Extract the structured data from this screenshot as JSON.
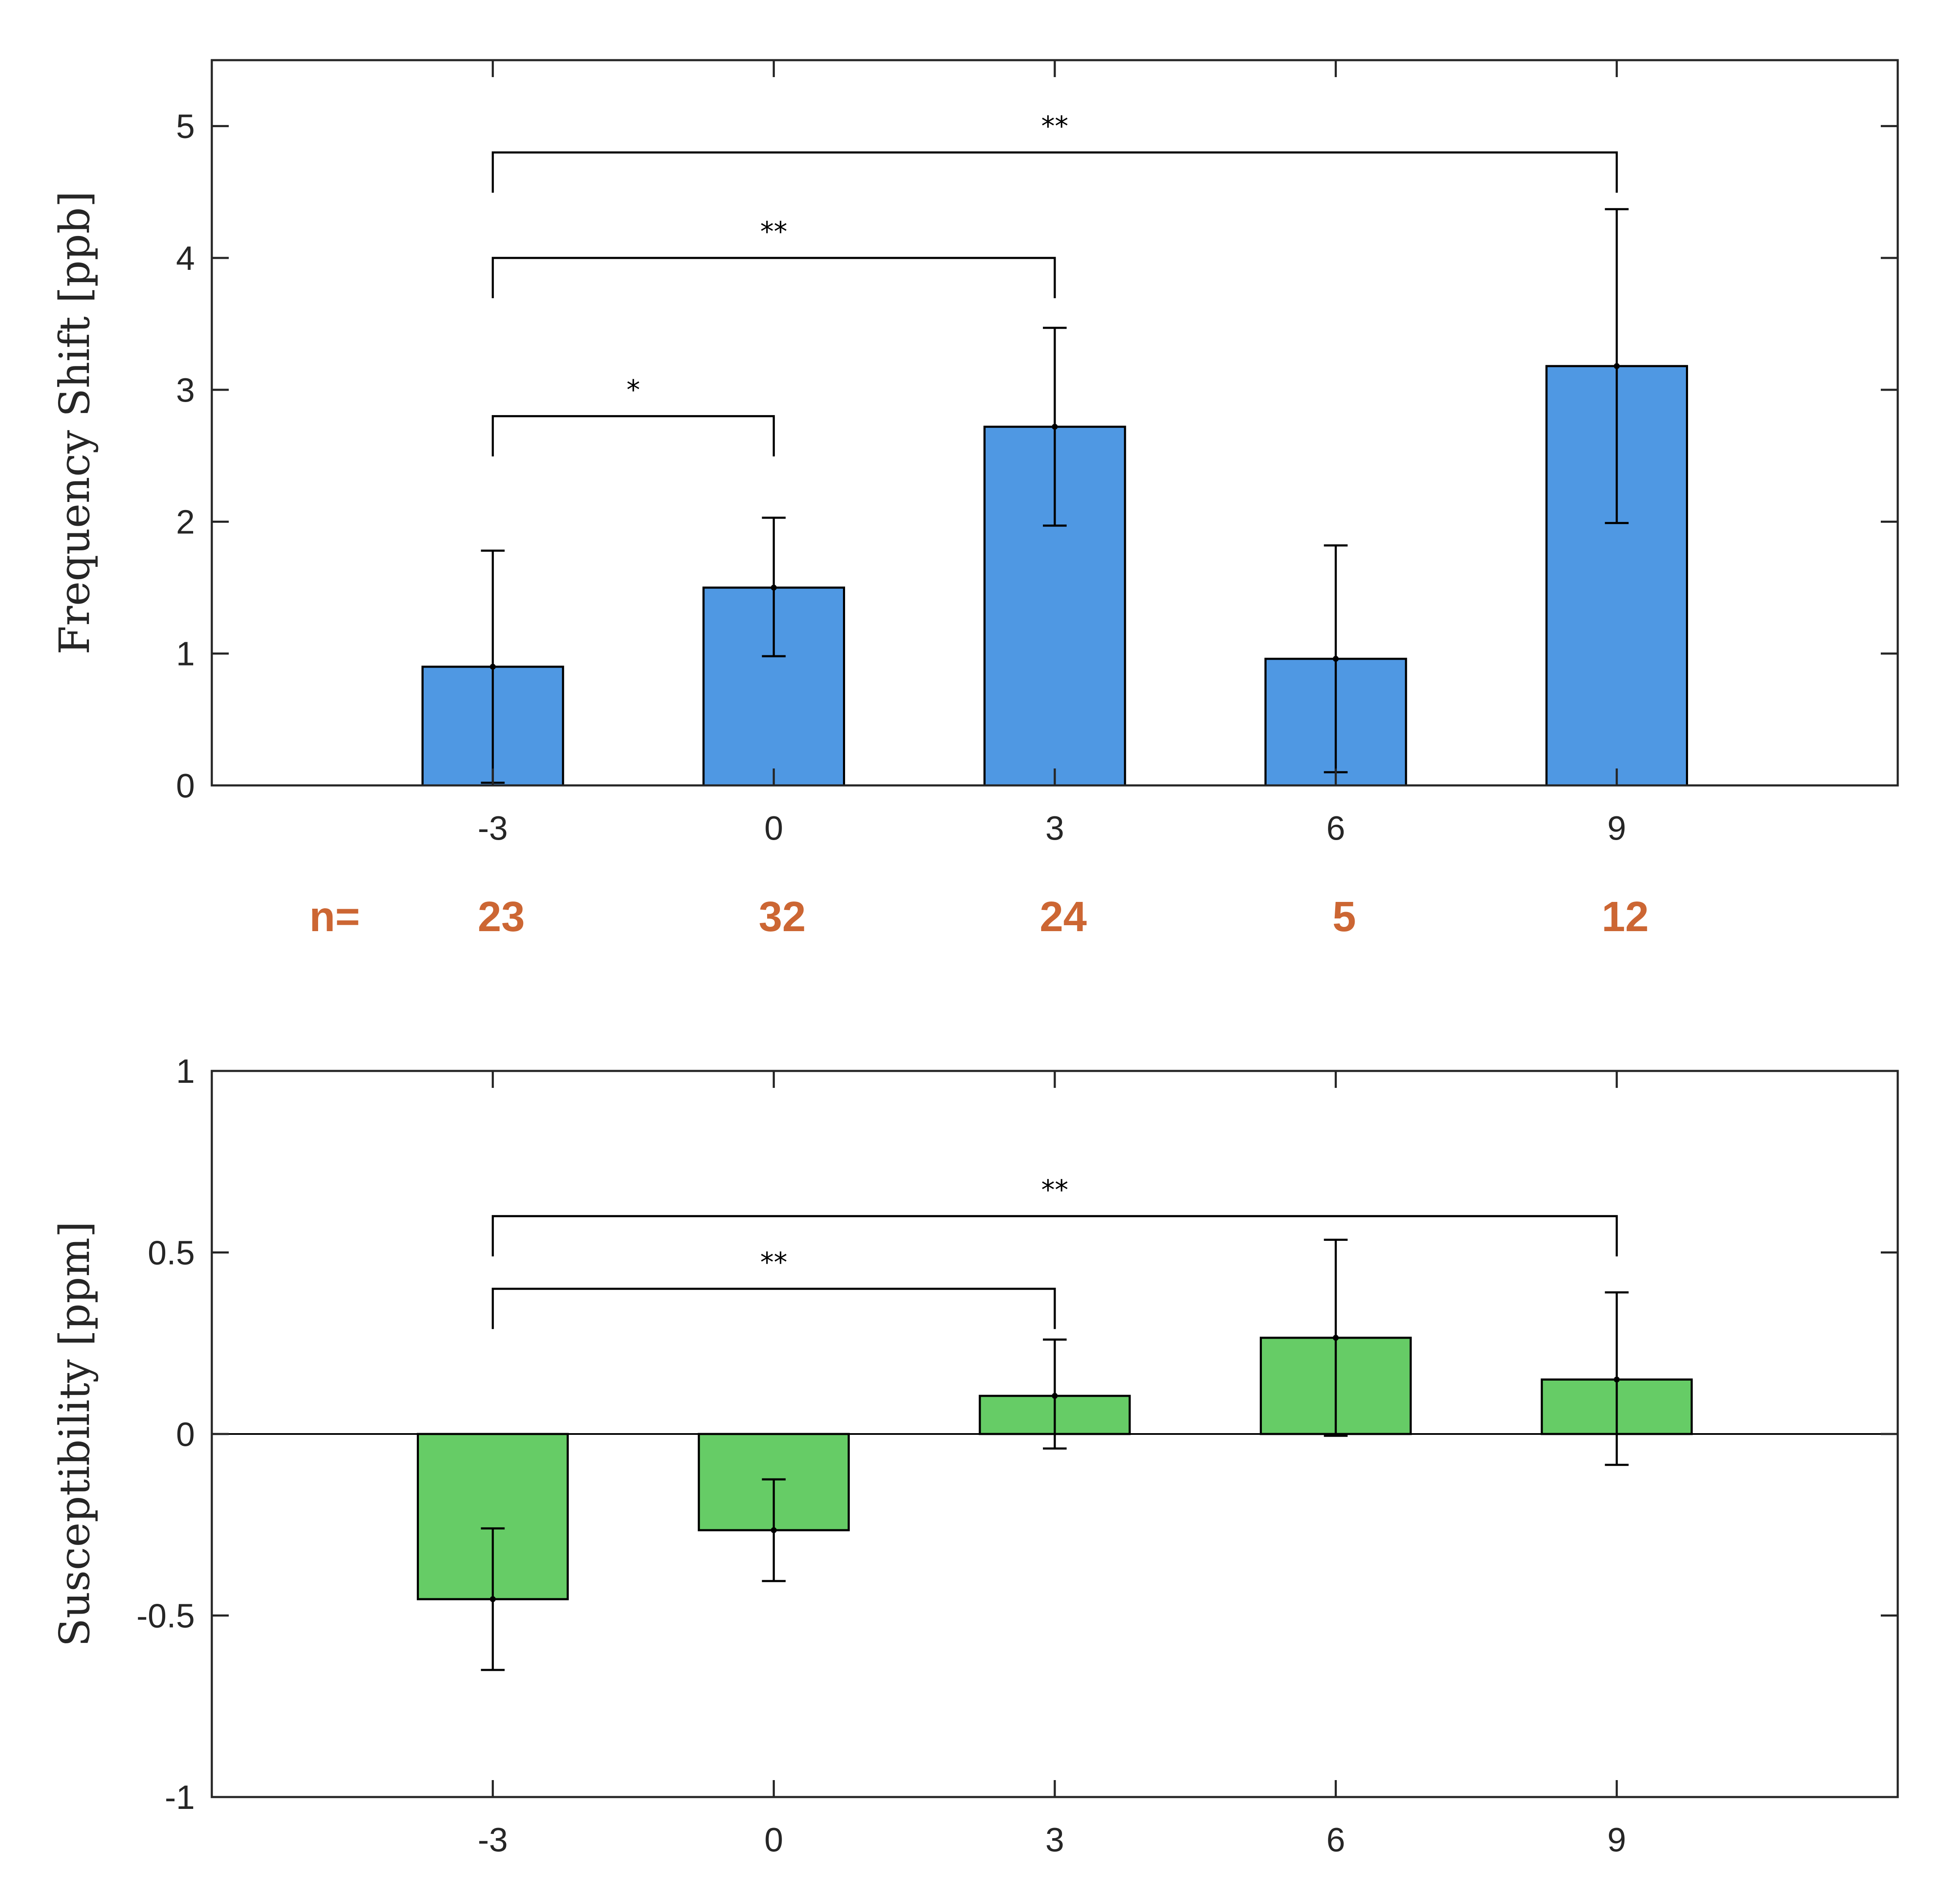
{
  "colors": {
    "bar_top": "#4f98e3",
    "bar_bottom": "#66cc66",
    "axis": "#262626",
    "n_label": "#cc6633"
  },
  "chart_data": [
    {
      "type": "bar",
      "name": "frequency-shift",
      "categories": [
        "-3",
        "0",
        "3",
        "6",
        "9"
      ],
      "x": [
        -3,
        0,
        3,
        6,
        9
      ],
      "values": [
        0.9,
        1.5,
        2.72,
        0.96,
        3.18
      ],
      "error_low": [
        0.02,
        0.98,
        1.97,
        0.1,
        1.99
      ],
      "error_high": [
        1.78,
        2.03,
        3.47,
        1.82,
        4.37
      ],
      "xlim": [
        -6,
        12
      ],
      "ylim": [
        0,
        5.5
      ],
      "yticks": [
        0,
        1,
        2,
        3,
        4,
        5
      ],
      "ytick_labels": [
        "0",
        "1",
        "2",
        "3",
        "4",
        "5"
      ],
      "xlabel": "",
      "ylabel": "Frequency Shift [ppb]",
      "grid": false,
      "significance": [
        {
          "from": -3,
          "to": 0,
          "y": 2.8,
          "label": "*"
        },
        {
          "from": -3,
          "to": 3,
          "y": 4.0,
          "label": "**"
        },
        {
          "from": -3,
          "to": 9,
          "y": 4.8,
          "label": "**"
        }
      ],
      "n_prefix": "n=",
      "n_values": [
        "23",
        "32",
        "24",
        "5",
        "12"
      ]
    },
    {
      "type": "bar",
      "name": "susceptibility",
      "categories": [
        "-3",
        "0",
        "3",
        "6",
        "9"
      ],
      "x": [
        -3,
        0,
        3,
        6,
        9
      ],
      "values": [
        -0.455,
        -0.265,
        0.105,
        0.265,
        0.15
      ],
      "error_low": [
        -0.65,
        -0.405,
        -0.04,
        -0.005,
        -0.085
      ],
      "error_high": [
        -0.26,
        -0.125,
        0.26,
        0.535,
        0.39
      ],
      "xlim": [
        -6,
        12
      ],
      "ylim": [
        -1,
        1
      ],
      "yticks": [
        -1,
        -0.5,
        0,
        0.5,
        1
      ],
      "ytick_labels": [
        "-1",
        "-0.5",
        "0",
        "0.5",
        "1"
      ],
      "xlabel": "",
      "ylabel": "Susceptibility [ppm]",
      "grid": false,
      "baseline": 0,
      "significance": [
        {
          "from": -3,
          "to": 3,
          "y": 0.4,
          "label": "**"
        },
        {
          "from": -3,
          "to": 9,
          "y": 0.6,
          "label": "**"
        }
      ]
    }
  ]
}
